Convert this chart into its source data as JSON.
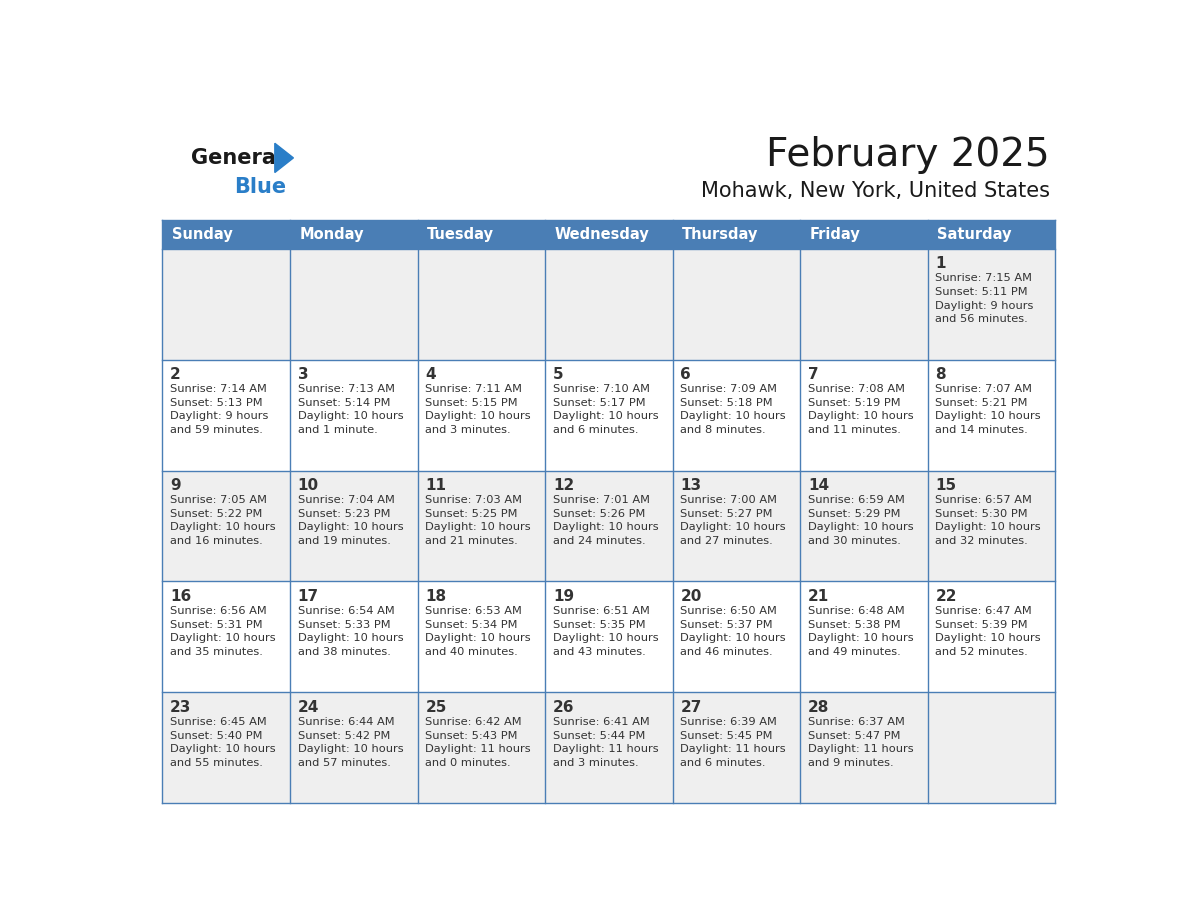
{
  "title": "February 2025",
  "subtitle": "Mohawk, New York, United States",
  "header_bg": "#4a7eb5",
  "header_text_color": "#ffffff",
  "days_of_week": [
    "Sunday",
    "Monday",
    "Tuesday",
    "Wednesday",
    "Thursday",
    "Friday",
    "Saturday"
  ],
  "cell_bg_odd": "#efefef",
  "cell_bg_even": "#ffffff",
  "border_color": "#4a7eb5",
  "day_num_color": "#333333",
  "text_color": "#333333",
  "logo_general_color": "#1a1a1a",
  "logo_blue_color": "#2a7ec8",
  "title_color": "#1a1a1a",
  "calendar_data": [
    [
      "",
      "",
      "",
      "",
      "",
      "",
      "1\nSunrise: 7:15 AM\nSunset: 5:11 PM\nDaylight: 9 hours\nand 56 minutes."
    ],
    [
      "2\nSunrise: 7:14 AM\nSunset: 5:13 PM\nDaylight: 9 hours\nand 59 minutes.",
      "3\nSunrise: 7:13 AM\nSunset: 5:14 PM\nDaylight: 10 hours\nand 1 minute.",
      "4\nSunrise: 7:11 AM\nSunset: 5:15 PM\nDaylight: 10 hours\nand 3 minutes.",
      "5\nSunrise: 7:10 AM\nSunset: 5:17 PM\nDaylight: 10 hours\nand 6 minutes.",
      "6\nSunrise: 7:09 AM\nSunset: 5:18 PM\nDaylight: 10 hours\nand 8 minutes.",
      "7\nSunrise: 7:08 AM\nSunset: 5:19 PM\nDaylight: 10 hours\nand 11 minutes.",
      "8\nSunrise: 7:07 AM\nSunset: 5:21 PM\nDaylight: 10 hours\nand 14 minutes."
    ],
    [
      "9\nSunrise: 7:05 AM\nSunset: 5:22 PM\nDaylight: 10 hours\nand 16 minutes.",
      "10\nSunrise: 7:04 AM\nSunset: 5:23 PM\nDaylight: 10 hours\nand 19 minutes.",
      "11\nSunrise: 7:03 AM\nSunset: 5:25 PM\nDaylight: 10 hours\nand 21 minutes.",
      "12\nSunrise: 7:01 AM\nSunset: 5:26 PM\nDaylight: 10 hours\nand 24 minutes.",
      "13\nSunrise: 7:00 AM\nSunset: 5:27 PM\nDaylight: 10 hours\nand 27 minutes.",
      "14\nSunrise: 6:59 AM\nSunset: 5:29 PM\nDaylight: 10 hours\nand 30 minutes.",
      "15\nSunrise: 6:57 AM\nSunset: 5:30 PM\nDaylight: 10 hours\nand 32 minutes."
    ],
    [
      "16\nSunrise: 6:56 AM\nSunset: 5:31 PM\nDaylight: 10 hours\nand 35 minutes.",
      "17\nSunrise: 6:54 AM\nSunset: 5:33 PM\nDaylight: 10 hours\nand 38 minutes.",
      "18\nSunrise: 6:53 AM\nSunset: 5:34 PM\nDaylight: 10 hours\nand 40 minutes.",
      "19\nSunrise: 6:51 AM\nSunset: 5:35 PM\nDaylight: 10 hours\nand 43 minutes.",
      "20\nSunrise: 6:50 AM\nSunset: 5:37 PM\nDaylight: 10 hours\nand 46 minutes.",
      "21\nSunrise: 6:48 AM\nSunset: 5:38 PM\nDaylight: 10 hours\nand 49 minutes.",
      "22\nSunrise: 6:47 AM\nSunset: 5:39 PM\nDaylight: 10 hours\nand 52 minutes."
    ],
    [
      "23\nSunrise: 6:45 AM\nSunset: 5:40 PM\nDaylight: 10 hours\nand 55 minutes.",
      "24\nSunrise: 6:44 AM\nSunset: 5:42 PM\nDaylight: 10 hours\nand 57 minutes.",
      "25\nSunrise: 6:42 AM\nSunset: 5:43 PM\nDaylight: 11 hours\nand 0 minutes.",
      "26\nSunrise: 6:41 AM\nSunset: 5:44 PM\nDaylight: 11 hours\nand 3 minutes.",
      "27\nSunrise: 6:39 AM\nSunset: 5:45 PM\nDaylight: 11 hours\nand 6 minutes.",
      "28\nSunrise: 6:37 AM\nSunset: 5:47 PM\nDaylight: 11 hours\nand 9 minutes.",
      ""
    ]
  ],
  "figwidth": 11.88,
  "figheight": 9.18,
  "dpi": 100
}
